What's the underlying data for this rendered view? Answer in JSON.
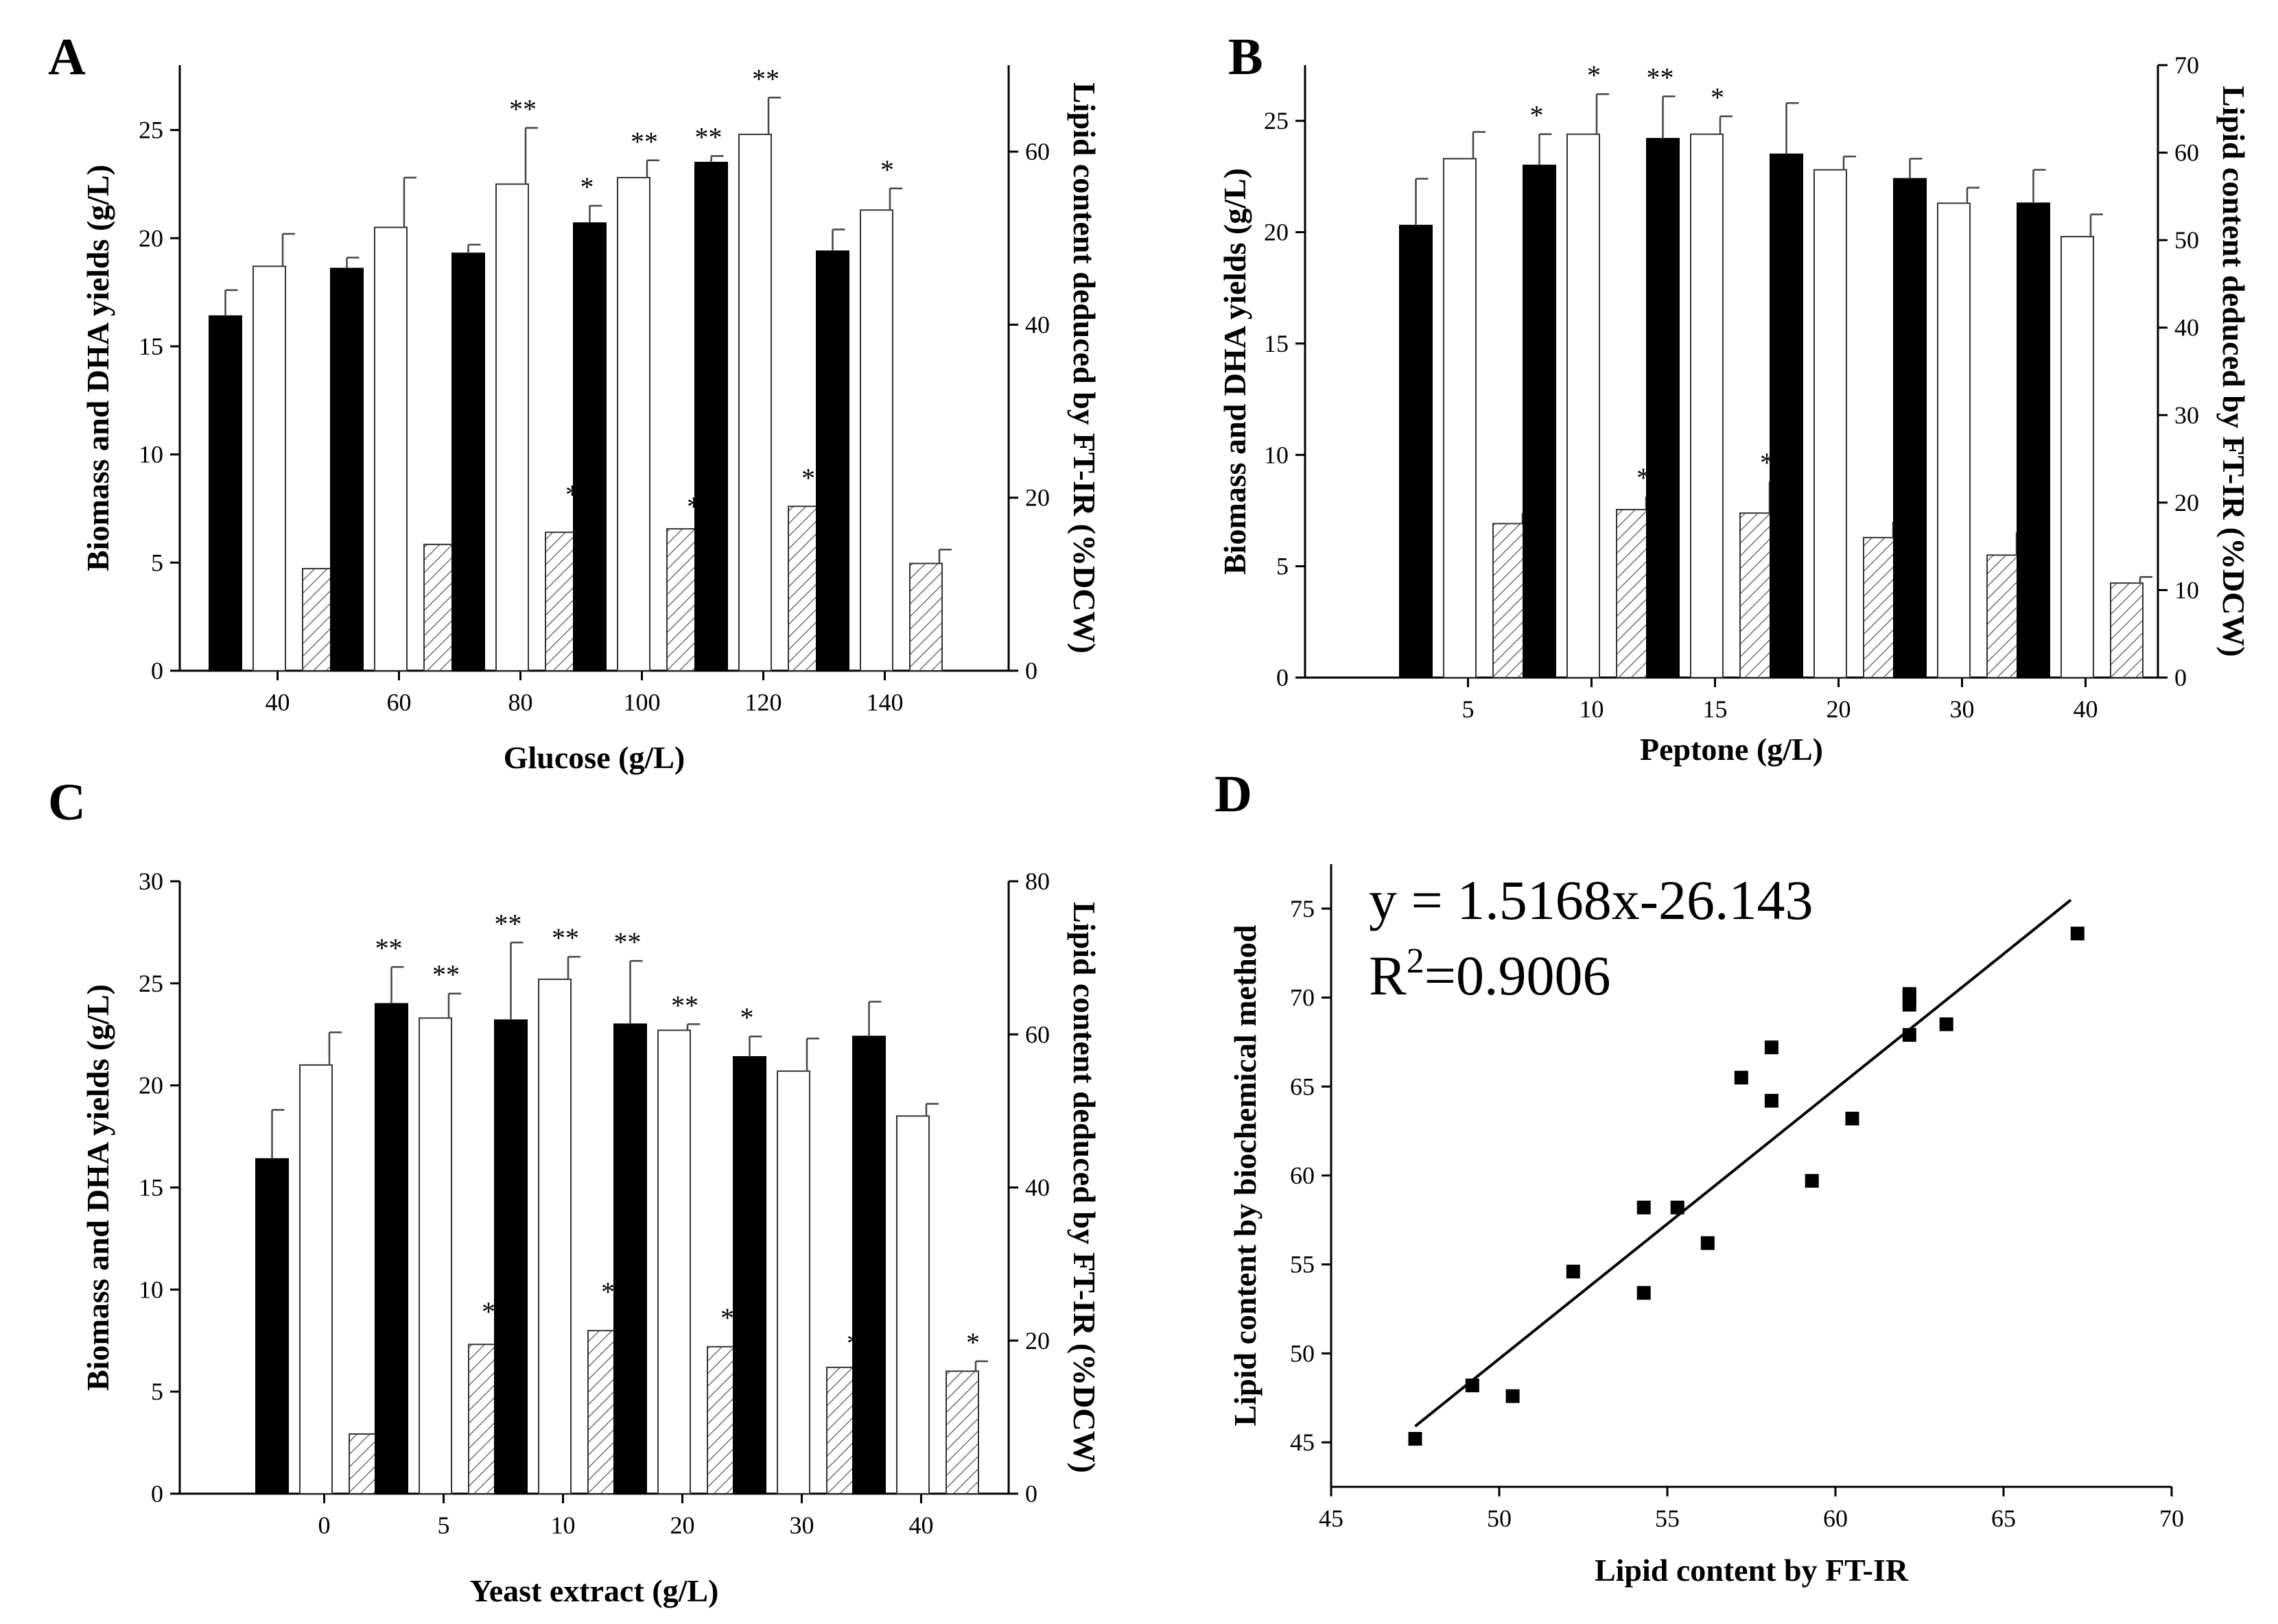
{
  "chart_data": [
    {
      "type": "bar",
      "panel": "A",
      "xlabel": "Glucose (g/L)",
      "ylabel": "Biomass and DHA yields (g/L)",
      "y2label": "Lipid content deduced by FT-IR (%DCW)",
      "categories": [
        "40",
        "60",
        "80",
        "100",
        "120",
        "140"
      ],
      "ylim": [
        0,
        28
      ],
      "yticks": [
        0,
        5,
        10,
        15,
        20,
        25
      ],
      "y2lim": [
        0,
        70
      ],
      "y2ticks": [
        0,
        20,
        40,
        60
      ],
      "series": [
        {
          "name": "Biomass",
          "style": "solid",
          "axis": "left",
          "values": [
            16.4,
            18.6,
            19.3,
            20.7,
            23.5,
            19.4
          ],
          "errors": [
            1.2,
            0.5,
            0.4,
            0.8,
            0.3,
            1.0
          ],
          "sig": [
            "",
            "",
            "",
            "*",
            "**",
            ""
          ]
        },
        {
          "name": "DHA",
          "style": "open",
          "axis": "left",
          "values": [
            18.7,
            20.5,
            22.5,
            22.8,
            24.8,
            21.3
          ],
          "errors": [
            1.5,
            2.3,
            2.6,
            0.8,
            1.7,
            1.0
          ],
          "sig": [
            "",
            "",
            "**",
            "**",
            "**",
            "*"
          ]
        },
        {
          "name": "Lipid content",
          "style": "hatched",
          "axis": "right",
          "values": [
            11.8,
            14.6,
            16.0,
            16.4,
            19.0,
            12.4
          ],
          "errors": [
            0.6,
            0.9,
            2.2,
            0.4,
            1.1,
            1.6
          ],
          "sig": [
            "",
            "",
            "*",
            "*",
            "**",
            ""
          ]
        }
      ]
    },
    {
      "type": "bar",
      "panel": "B",
      "xlabel": "Peptone (g/L)",
      "ylabel": "Biomass and DHA yields (g/L)",
      "y2label": "Lipid content deduced by FT-IR (%DCW)",
      "categories": [
        "5",
        "10",
        "15",
        "20",
        "30",
        "40"
      ],
      "ylim": [
        0,
        27.5
      ],
      "yticks": [
        0,
        5,
        10,
        15,
        20,
        25
      ],
      "y2lim": [
        0,
        70
      ],
      "y2ticks": [
        0,
        10,
        20,
        30,
        40,
        50,
        60,
        70
      ],
      "series": [
        {
          "name": "Biomass",
          "style": "solid",
          "axis": "left",
          "values": [
            20.3,
            23.0,
            24.2,
            23.5,
            22.4,
            21.3
          ],
          "errors": [
            2.1,
            1.4,
            1.9,
            2.3,
            0.9,
            1.5
          ],
          "sig": [
            "",
            "*",
            "**",
            "",
            "",
            ""
          ]
        },
        {
          "name": "DHA",
          "style": "open",
          "axis": "left",
          "values": [
            23.3,
            24.4,
            24.4,
            22.8,
            21.3,
            19.8
          ],
          "errors": [
            1.2,
            1.8,
            0.8,
            0.6,
            0.7,
            1.0
          ],
          "sig": [
            "",
            "*",
            "*",
            "",
            "",
            ""
          ]
        },
        {
          "name": "Lipid content",
          "style": "hatched",
          "axis": "right",
          "values": [
            17.6,
            19.2,
            18.8,
            16.0,
            14.0,
            10.8
          ],
          "errors": [
            1.2,
            1.5,
            3.6,
            1.8,
            2.6,
            0.7
          ],
          "sig": [
            "",
            "*",
            "*",
            "",
            "",
            ""
          ]
        }
      ]
    },
    {
      "type": "bar",
      "panel": "C",
      "xlabel": "Yeast extract (g/L)",
      "ylabel": "Biomass and DHA yields (g/L)",
      "y2label": "Lipid content deduced by FT-IR (%DCW)",
      "categories": [
        "0",
        "5",
        "10",
        "20",
        "30",
        "40"
      ],
      "ylim": [
        0,
        30
      ],
      "yticks": [
        0,
        5,
        10,
        15,
        20,
        25,
        30
      ],
      "y2lim": [
        0,
        80
      ],
      "y2ticks": [
        0,
        20,
        40,
        60,
        80
      ],
      "series": [
        {
          "name": "Biomass",
          "style": "solid",
          "axis": "left",
          "values": [
            16.4,
            24.0,
            23.2,
            23.0,
            21.4,
            22.4
          ],
          "errors": [
            2.4,
            1.8,
            3.8,
            3.1,
            1.0,
            1.7
          ],
          "sig": [
            "",
            "**",
            "**",
            "**",
            "*",
            ""
          ]
        },
        {
          "name": "DHA",
          "style": "open",
          "axis": "left",
          "values": [
            21.0,
            23.3,
            25.2,
            22.7,
            20.7,
            18.5
          ],
          "errors": [
            1.6,
            1.2,
            1.1,
            0.3,
            1.6,
            0.6
          ],
          "sig": [
            "",
            "**",
            "**",
            "**",
            "",
            ""
          ]
        },
        {
          "name": "Lipid content",
          "style": "hatched",
          "axis": "right",
          "values": [
            7.8,
            19.5,
            21.3,
            19.2,
            16.5,
            16.0
          ],
          "errors": [
            0.7,
            1.8,
            2.6,
            1.3,
            0.7,
            1.3
          ],
          "sig": [
            "",
            "**",
            "**",
            "**",
            "*",
            "*"
          ]
        }
      ]
    },
    {
      "type": "scatter",
      "panel": "D",
      "xlabel": "Lipid content by FT-IR",
      "ylabel": "Lipid content by  biochemical method",
      "xlim": [
        45,
        70
      ],
      "ylim": [
        42.5,
        77.5
      ],
      "xticks": [
        45,
        50,
        55,
        60,
        65,
        70
      ],
      "yticks": [
        45,
        50,
        55,
        60,
        65,
        70,
        75
      ],
      "equation": "y = 1.5168x-26.143",
      "r2_prefix": "R",
      "r2_sup": "2",
      "r2_value": "=0.9006",
      "fit": {
        "slope": 1.5168,
        "intercept": -26.143,
        "x_range": [
          47.5,
          67.0
        ]
      },
      "x": [
        47.5,
        49.2,
        50.4,
        52.2,
        54.3,
        54.3,
        55.3,
        56.2,
        57.2,
        58.1,
        58.1,
        59.3,
        60.5,
        62.2,
        62.2,
        62.2,
        62.2,
        63.3,
        67.2
      ],
      "y": [
        45.2,
        48.2,
        47.6,
        54.6,
        53.4,
        58.2,
        58.2,
        56.2,
        65.5,
        67.2,
        64.2,
        59.7,
        63.2,
        67.9,
        69.6,
        70.0,
        70.2,
        68.5,
        73.6
      ]
    }
  ]
}
